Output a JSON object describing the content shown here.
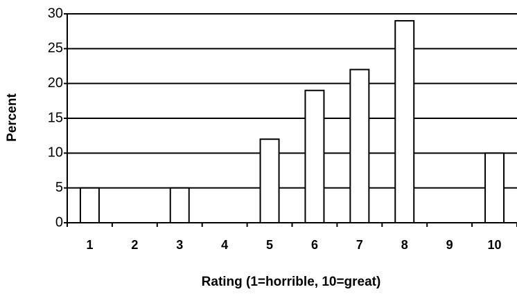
{
  "chart_data": {
    "type": "bar",
    "categories": [
      "1",
      "2",
      "3",
      "4",
      "5",
      "6",
      "7",
      "8",
      "9",
      "10"
    ],
    "values": [
      5,
      0,
      5,
      0,
      12,
      19,
      22,
      29,
      0,
      10
    ],
    "color": "#ffffff",
    "x_label": "Rating (1=horrible, 10=great)",
    "y_label": "Percent",
    "ylim": [
      0,
      30
    ],
    "yticks": [
      0,
      5,
      10,
      15,
      20,
      25,
      30
    ],
    "grid": true
  }
}
